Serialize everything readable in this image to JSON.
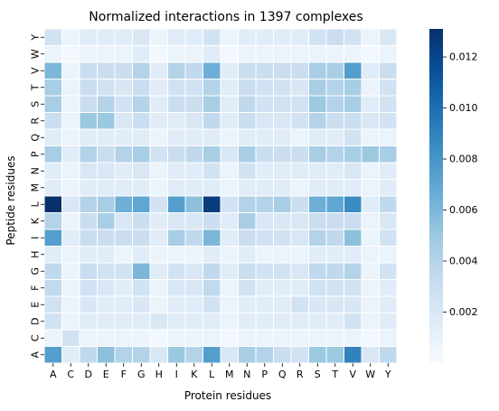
{
  "chart_data": {
    "type": "heatmap",
    "title": "Normalized interactions in 1397 complexes",
    "xlabel": "Protein residues",
    "ylabel": "Peptide residues",
    "x_categories": [
      "A",
      "C",
      "D",
      "E",
      "F",
      "G",
      "H",
      "I",
      "K",
      "L",
      "M",
      "N",
      "P",
      "Q",
      "R",
      "S",
      "T",
      "V",
      "W",
      "Y"
    ],
    "y_categories_top_to_bottom": [
      "Y",
      "W",
      "V",
      "T",
      "S",
      "R",
      "Q",
      "P",
      "N",
      "M",
      "L",
      "K",
      "I",
      "H",
      "G",
      "F",
      "E",
      "D",
      "C",
      "A"
    ],
    "colorscale": "Blues",
    "vmin": 0.0,
    "vmax": 0.0131,
    "colorbar_ticks": [
      0.002,
      0.004,
      0.006,
      0.008,
      0.01,
      0.012
    ],
    "colorbar_tick_labels": [
      "0.002",
      "0.004",
      "0.006",
      "0.008",
      "0.010",
      "0.012"
    ],
    "values": [
      [
        0.0025,
        0.0008,
        0.0015,
        0.0015,
        0.0015,
        0.002,
        0.0008,
        0.0015,
        0.0015,
        0.0025,
        0.0008,
        0.0015,
        0.0015,
        0.0015,
        0.0015,
        0.0025,
        0.003,
        0.0025,
        0.0008,
        0.002
      ],
      [
        0.0008,
        0.0003,
        0.0008,
        0.0008,
        0.0008,
        0.0015,
        0.0003,
        0.0008,
        0.0008,
        0.0015,
        0.0003,
        0.0008,
        0.0008,
        0.0008,
        0.0008,
        0.0008,
        0.0008,
        0.0008,
        0.0003,
        0.0008
      ],
      [
        0.006,
        0.0008,
        0.003,
        0.003,
        0.003,
        0.004,
        0.0015,
        0.004,
        0.0035,
        0.0065,
        0.0015,
        0.003,
        0.003,
        0.003,
        0.003,
        0.0045,
        0.0045,
        0.0075,
        0.0015,
        0.003
      ],
      [
        0.0045,
        0.0008,
        0.003,
        0.0025,
        0.002,
        0.003,
        0.0015,
        0.0025,
        0.0025,
        0.004,
        0.0015,
        0.003,
        0.0025,
        0.0025,
        0.002,
        0.0045,
        0.004,
        0.0045,
        0.0008,
        0.0025
      ],
      [
        0.0045,
        0.0008,
        0.003,
        0.004,
        0.0025,
        0.004,
        0.0015,
        0.003,
        0.003,
        0.0045,
        0.0015,
        0.0035,
        0.0025,
        0.0025,
        0.0025,
        0.005,
        0.004,
        0.0045,
        0.0015,
        0.0025
      ],
      [
        0.003,
        0.0008,
        0.005,
        0.005,
        0.002,
        0.003,
        0.0015,
        0.0015,
        0.002,
        0.0035,
        0.0015,
        0.003,
        0.002,
        0.002,
        0.0025,
        0.004,
        0.003,
        0.003,
        0.002,
        0.0025
      ],
      [
        0.0015,
        0.0008,
        0.0015,
        0.0015,
        0.0015,
        0.0015,
        0.0008,
        0.0015,
        0.0015,
        0.0015,
        0.0008,
        0.0015,
        0.0015,
        0.0015,
        0.0008,
        0.0015,
        0.0015,
        0.0025,
        0.0008,
        0.0008
      ],
      [
        0.0045,
        0.0015,
        0.004,
        0.003,
        0.004,
        0.0045,
        0.0025,
        0.003,
        0.0035,
        0.0045,
        0.002,
        0.0045,
        0.003,
        0.003,
        0.003,
        0.0045,
        0.004,
        0.0045,
        0.005,
        0.0045
      ],
      [
        0.0015,
        0.0008,
        0.002,
        0.002,
        0.0015,
        0.002,
        0.0008,
        0.0015,
        0.0015,
        0.0025,
        0.0008,
        0.0025,
        0.0015,
        0.0015,
        0.0015,
        0.0015,
        0.0015,
        0.002,
        0.0008,
        0.0015
      ],
      [
        0.0015,
        0.0008,
        0.0015,
        0.0015,
        0.0015,
        0.0015,
        0.0008,
        0.0015,
        0.0015,
        0.0015,
        0.0008,
        0.0015,
        0.0015,
        0.0015,
        0.0008,
        0.0015,
        0.0015,
        0.0015,
        0.0008,
        0.0015
      ],
      [
        0.0131,
        0.002,
        0.004,
        0.0045,
        0.0065,
        0.007,
        0.0025,
        0.0075,
        0.0055,
        0.0125,
        0.0025,
        0.004,
        0.004,
        0.0045,
        0.003,
        0.0065,
        0.007,
        0.0085,
        0.0015,
        0.0035
      ],
      [
        0.004,
        0.0008,
        0.003,
        0.0045,
        0.002,
        0.003,
        0.0015,
        0.002,
        0.002,
        0.003,
        0.0015,
        0.0045,
        0.002,
        0.002,
        0.002,
        0.003,
        0.003,
        0.003,
        0.0008,
        0.002
      ],
      [
        0.0075,
        0.0015,
        0.003,
        0.003,
        0.003,
        0.003,
        0.0015,
        0.0045,
        0.0035,
        0.006,
        0.0015,
        0.003,
        0.0025,
        0.0025,
        0.002,
        0.004,
        0.0035,
        0.0055,
        0.0008,
        0.0025
      ],
      [
        0.0015,
        0.0008,
        0.0015,
        0.0015,
        0.0008,
        0.0015,
        0.0008,
        0.0008,
        0.0008,
        0.0015,
        0.0008,
        0.0015,
        0.0008,
        0.0008,
        0.0008,
        0.0015,
        0.0015,
        0.0015,
        0.0008,
        0.0008
      ],
      [
        0.0035,
        0.0008,
        0.003,
        0.0025,
        0.0025,
        0.006,
        0.0015,
        0.0025,
        0.002,
        0.0035,
        0.0015,
        0.003,
        0.0025,
        0.0025,
        0.002,
        0.0035,
        0.0035,
        0.004,
        0.0008,
        0.0025
      ],
      [
        0.0035,
        0.0008,
        0.0025,
        0.002,
        0.0015,
        0.0025,
        0.0008,
        0.002,
        0.002,
        0.0035,
        0.0008,
        0.0025,
        0.0015,
        0.0015,
        0.0015,
        0.0025,
        0.0025,
        0.0025,
        0.0008,
        0.0015
      ],
      [
        0.0025,
        0.0008,
        0.002,
        0.0015,
        0.0015,
        0.002,
        0.0008,
        0.0015,
        0.0015,
        0.0025,
        0.0008,
        0.0015,
        0.0015,
        0.0015,
        0.0025,
        0.002,
        0.002,
        0.002,
        0.0008,
        0.0015
      ],
      [
        0.0025,
        0.0008,
        0.0015,
        0.0015,
        0.0015,
        0.0015,
        0.002,
        0.0015,
        0.0015,
        0.0015,
        0.0008,
        0.0015,
        0.0015,
        0.0015,
        0.0015,
        0.0015,
        0.0015,
        0.0025,
        0.0008,
        0.0015
      ],
      [
        0.0008,
        0.0025,
        0.0008,
        0.0008,
        0.0008,
        0.0008,
        0.0003,
        0.0008,
        0.0008,
        0.0008,
        0.0003,
        0.0008,
        0.0008,
        0.0008,
        0.0008,
        0.0008,
        0.0008,
        0.0008,
        0.0003,
        0.0008
      ],
      [
        0.0075,
        0.0015,
        0.0035,
        0.0055,
        0.004,
        0.004,
        0.002,
        0.005,
        0.004,
        0.0075,
        0.002,
        0.0045,
        0.004,
        0.003,
        0.0025,
        0.005,
        0.005,
        0.009,
        0.002,
        0.0035
      ]
    ]
  }
}
